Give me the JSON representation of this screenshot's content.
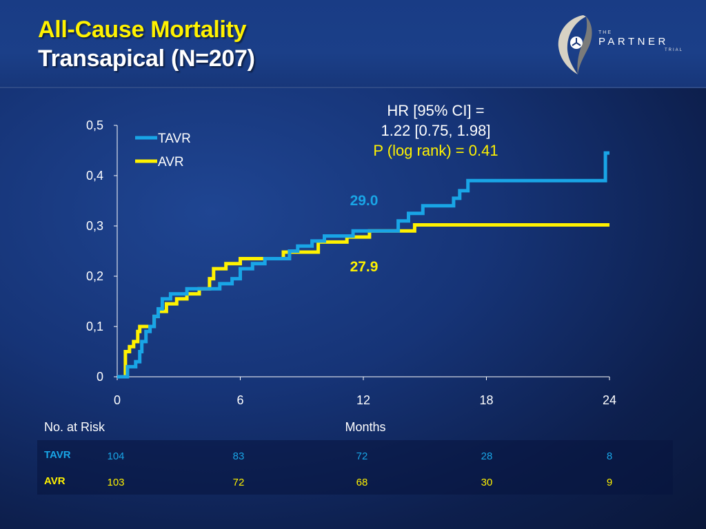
{
  "header": {
    "title": "All-Cause Mortality",
    "subtitle": "Transapical (N=207)"
  },
  "logo": {
    "the": "THE",
    "name": "PARTNER",
    "trial": "TRIAL"
  },
  "stats": {
    "hr_line1": "HR [95% CI] =",
    "hr_line2": "1.22 [0.75, 1.98]",
    "pvalue": "P (log rank) = 0.41"
  },
  "risk_table": {
    "title": "No. at Risk",
    "rows": [
      {
        "label": "TAVR",
        "values": [
          "104",
          "83",
          "72",
          "28",
          "8"
        ]
      },
      {
        "label": "AVR",
        "values": [
          "103",
          "72",
          "68",
          "30",
          "9"
        ]
      }
    ]
  },
  "colors": {
    "tavr": "#19a5e6",
    "avr": "#fff200",
    "title": "#fff200",
    "background": "#163477"
  },
  "chart_data": {
    "type": "line",
    "step": true,
    "xlabel": "Months",
    "ylabel": "",
    "xlim": [
      0,
      24
    ],
    "ylim": [
      0,
      0.5
    ],
    "x_ticks": [
      0,
      6,
      12,
      18,
      24
    ],
    "x_tick_labels": [
      "0",
      "6",
      "12",
      "18",
      "24"
    ],
    "y_ticks": [
      0,
      0.1,
      0.2,
      0.3,
      0.4,
      0.5
    ],
    "y_tick_labels": [
      "0",
      "0,1",
      "0,2",
      "0,3",
      "0,4",
      "0,5"
    ],
    "grid": false,
    "legend": {
      "position": "top-left"
    },
    "series": [
      {
        "name": "TAVR",
        "color": "#19a5e6",
        "end_label": "29.0",
        "points": [
          [
            0,
            0
          ],
          [
            0.5,
            0
          ],
          [
            0.5,
            0.02
          ],
          [
            0.9,
            0.02
          ],
          [
            0.9,
            0.03
          ],
          [
            1.1,
            0.03
          ],
          [
            1.1,
            0.05
          ],
          [
            1.2,
            0.05
          ],
          [
            1.2,
            0.07
          ],
          [
            1.4,
            0.07
          ],
          [
            1.4,
            0.09
          ],
          [
            1.6,
            0.09
          ],
          [
            1.6,
            0.1
          ],
          [
            1.8,
            0.1
          ],
          [
            1.8,
            0.12
          ],
          [
            2.0,
            0.12
          ],
          [
            2.0,
            0.135
          ],
          [
            2.2,
            0.135
          ],
          [
            2.2,
            0.155
          ],
          [
            2.6,
            0.155
          ],
          [
            2.6,
            0.165
          ],
          [
            3.4,
            0.165
          ],
          [
            3.4,
            0.175
          ],
          [
            5.0,
            0.175
          ],
          [
            5.0,
            0.185
          ],
          [
            5.6,
            0.185
          ],
          [
            5.6,
            0.195
          ],
          [
            6.0,
            0.195
          ],
          [
            6.0,
            0.215
          ],
          [
            6.6,
            0.215
          ],
          [
            6.6,
            0.225
          ],
          [
            7.2,
            0.225
          ],
          [
            7.2,
            0.235
          ],
          [
            8.4,
            0.235
          ],
          [
            8.4,
            0.25
          ],
          [
            8.8,
            0.25
          ],
          [
            8.8,
            0.26
          ],
          [
            9.5,
            0.26
          ],
          [
            9.5,
            0.27
          ],
          [
            10.1,
            0.27
          ],
          [
            10.1,
            0.28
          ],
          [
            11.5,
            0.28
          ],
          [
            11.5,
            0.29
          ],
          [
            13.7,
            0.29
          ],
          [
            13.7,
            0.31
          ],
          [
            14.2,
            0.31
          ],
          [
            14.2,
            0.325
          ],
          [
            14.9,
            0.325
          ],
          [
            14.9,
            0.34
          ],
          [
            16.4,
            0.34
          ],
          [
            16.4,
            0.355
          ],
          [
            16.7,
            0.355
          ],
          [
            16.7,
            0.37
          ],
          [
            17.1,
            0.37
          ],
          [
            17.1,
            0.39
          ],
          [
            23.8,
            0.39
          ],
          [
            23.8,
            0.445
          ],
          [
            24,
            0.445
          ]
        ]
      },
      {
        "name": "AVR",
        "color": "#fff200",
        "end_label": "27.9",
        "points": [
          [
            0,
            0
          ],
          [
            0.4,
            0
          ],
          [
            0.4,
            0.05
          ],
          [
            0.6,
            0.05
          ],
          [
            0.6,
            0.06
          ],
          [
            0.8,
            0.06
          ],
          [
            0.8,
            0.07
          ],
          [
            1.0,
            0.07
          ],
          [
            1.0,
            0.09
          ],
          [
            1.1,
            0.09
          ],
          [
            1.1,
            0.1
          ],
          [
            1.8,
            0.1
          ],
          [
            1.8,
            0.12
          ],
          [
            2.0,
            0.12
          ],
          [
            2.0,
            0.13
          ],
          [
            2.4,
            0.13
          ],
          [
            2.4,
            0.145
          ],
          [
            2.9,
            0.145
          ],
          [
            2.9,
            0.155
          ],
          [
            3.4,
            0.155
          ],
          [
            3.4,
            0.165
          ],
          [
            4.0,
            0.165
          ],
          [
            4.0,
            0.175
          ],
          [
            4.5,
            0.175
          ],
          [
            4.5,
            0.195
          ],
          [
            4.7,
            0.195
          ],
          [
            4.7,
            0.215
          ],
          [
            5.3,
            0.215
          ],
          [
            5.3,
            0.225
          ],
          [
            6.0,
            0.225
          ],
          [
            6.0,
            0.235
          ],
          [
            8.1,
            0.235
          ],
          [
            8.1,
            0.248
          ],
          [
            9.8,
            0.248
          ],
          [
            9.8,
            0.268
          ],
          [
            11.2,
            0.268
          ],
          [
            11.2,
            0.278
          ],
          [
            12.3,
            0.278
          ],
          [
            12.3,
            0.29
          ],
          [
            14.5,
            0.29
          ],
          [
            14.5,
            0.302
          ],
          [
            24,
            0.302
          ]
        ]
      }
    ]
  }
}
